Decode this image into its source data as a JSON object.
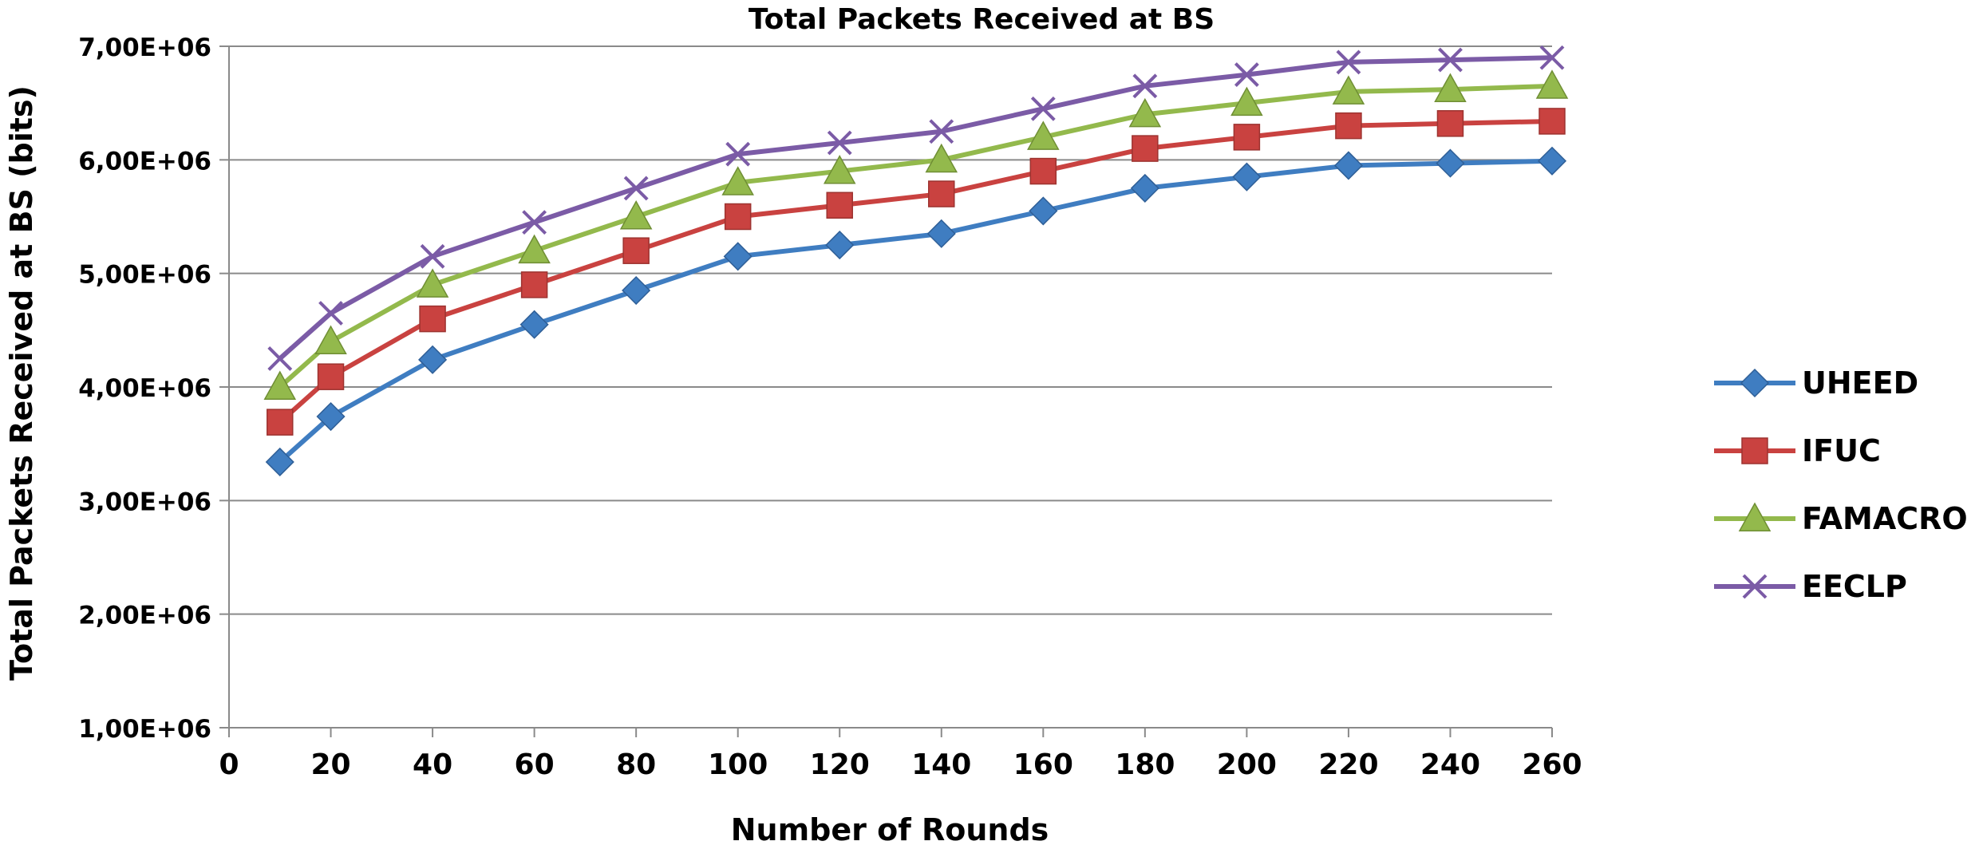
{
  "chart_data": {
    "type": "line",
    "title": "Total Packets Received at BS",
    "xlabel": "Number of Rounds",
    "ylabel": "Total Packets Received at BS (bits)",
    "x": [
      10,
      20,
      40,
      60,
      80,
      100,
      120,
      140,
      160,
      180,
      200,
      220,
      240,
      260
    ],
    "xlim": [
      0,
      260
    ],
    "xticks": [
      0,
      20,
      40,
      60,
      80,
      100,
      120,
      140,
      160,
      180,
      200,
      220,
      240,
      260
    ],
    "ylim": [
      1000000,
      7000000
    ],
    "yticks": [
      1000000,
      2000000,
      3000000,
      4000000,
      5000000,
      6000000,
      7000000
    ],
    "ytick_labels": [
      "1,00E+06",
      "2,00E+06",
      "3,00E+06",
      "4,00E+06",
      "5,00E+06",
      "6,00E+06",
      "7,00E+06"
    ],
    "grid": "horizontal",
    "legend_position": "right",
    "series": [
      {
        "name": "UHEED",
        "color": "#3f7dc1",
        "marker": "diamond",
        "values": [
          3340000,
          3740000,
          4240000,
          4550000,
          4850000,
          5150000,
          5250000,
          5350000,
          5550000,
          5750000,
          5850000,
          5950000,
          5970000,
          5990000
        ]
      },
      {
        "name": "IFUC",
        "color": "#c94240",
        "marker": "square",
        "values": [
          3690000,
          4090000,
          4600000,
          4900000,
          5200000,
          5500000,
          5600000,
          5700000,
          5900000,
          6100000,
          6200000,
          6300000,
          6320000,
          6340000
        ]
      },
      {
        "name": "FAMACRO",
        "color": "#93b94c",
        "marker": "triangle",
        "values": [
          4000000,
          4400000,
          4900000,
          5200000,
          5500000,
          5800000,
          5900000,
          6000000,
          6200000,
          6400000,
          6500000,
          6600000,
          6620000,
          6650000
        ]
      },
      {
        "name": "EECLP",
        "color": "#7b5ba6",
        "marker": "x",
        "values": [
          4250000,
          4650000,
          5150000,
          5450000,
          5750000,
          6050000,
          6150000,
          6250000,
          6450000,
          6650000,
          6750000,
          6860000,
          6880000,
          6900000
        ]
      }
    ]
  }
}
